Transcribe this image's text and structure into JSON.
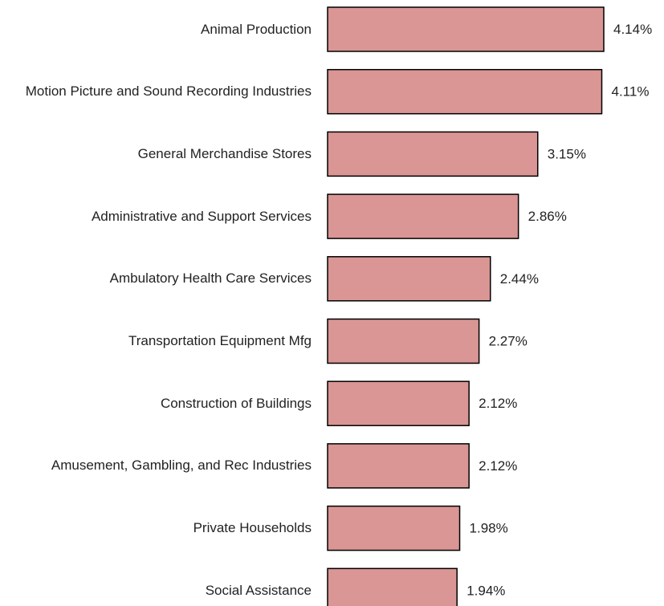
{
  "chart_data": {
    "type": "bar",
    "orientation": "horizontal",
    "color": "#d99694",
    "categories": [
      "Animal Production",
      "Motion Picture and Sound Recording Industries",
      "General Merchandise Stores",
      "Administrative and Support Services",
      "Ambulatory Health Care Services",
      "Transportation Equipment Mfg",
      "Construction of Buildings",
      "Amusement, Gambling, and Rec Industries",
      "Private Households",
      "Social Assistance"
    ],
    "values": [
      4.14,
      4.11,
      3.15,
      2.86,
      2.44,
      2.27,
      2.12,
      2.12,
      1.98,
      1.94
    ],
    "value_labels": [
      "4.14%",
      "4.11%",
      "3.15%",
      "2.86%",
      "2.44%",
      "2.27%",
      "2.12%",
      "2.12%",
      "1.98%",
      "1.94%"
    ]
  }
}
